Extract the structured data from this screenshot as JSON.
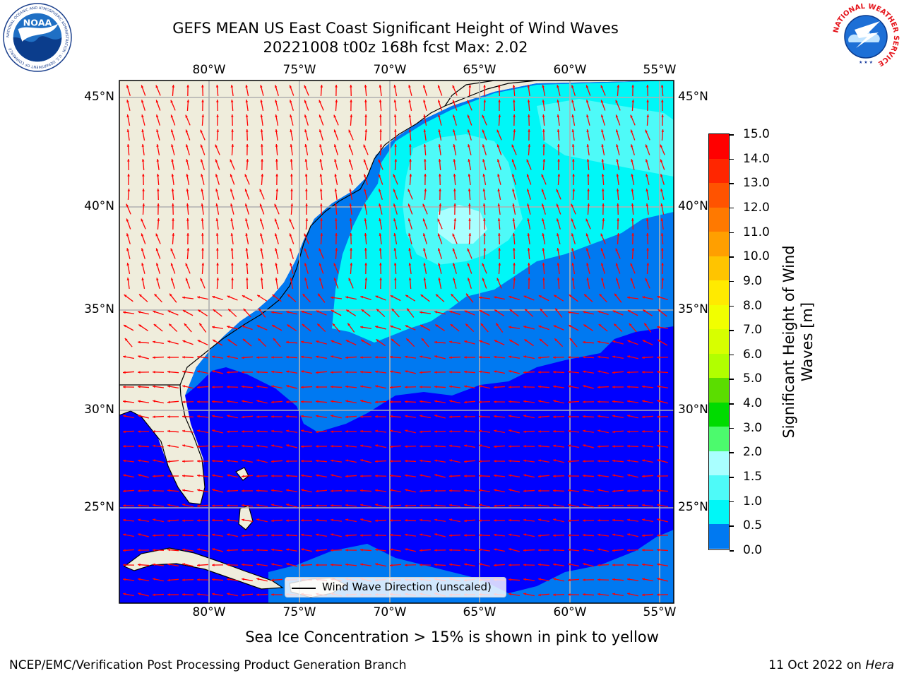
{
  "title": {
    "line1": "GEFS MEAN US East Coast Significant Height of Wind Waves",
    "line2": "20221008 t00z 168h fcst   Max: 2.02"
  },
  "chart_data": {
    "type": "heatmap",
    "variable": "Significant Height of Wind Waves",
    "max_value": 2.02,
    "extent": {
      "lon_min": -85,
      "lon_max": -54.5,
      "lat_min": 20.5,
      "lat_max": 46
    },
    "lon_ticks": [
      "80°W",
      "75°W",
      "70°W",
      "65°W",
      "60°W",
      "55°W"
    ],
    "lat_ticks": [
      "45°N",
      "40°N",
      "35°N",
      "30°N",
      "25°N"
    ],
    "grid": true,
    "regions": [
      {
        "band": "0.0-0.5",
        "area": "south of about 32°N and the Caribbean"
      },
      {
        "band": "0.5-1.0",
        "area": "coastal shelf and a band across about 33°N-38°N"
      },
      {
        "band": "1.0-1.5",
        "area": "northeast of about 35°N, Gulf of Maine to 55°W"
      },
      {
        "band": "1.5-2.0",
        "area": "patches near 37°N-42°N, 64°W-70°W"
      },
      {
        "band": "2.0-3.0",
        "area": "small patch near 38°N, 67°W (max 2.02)"
      }
    ],
    "arrows": {
      "color": "#ff0000",
      "description": "Wind wave direction (unscaled); mostly westward south of 34°N, north-northwestward north of 35°N"
    }
  },
  "colorbar": {
    "title": "Significant Height of Wind Waves [m]",
    "labels": [
      "15.0",
      "14.0",
      "13.0",
      "12.0",
      "11.0",
      "10.0",
      "9.0",
      "8.0",
      "7.0",
      "6.0",
      "5.0",
      "4.0",
      "3.0",
      "2.0",
      "1.5",
      "1.0",
      "0.5",
      "0.0"
    ],
    "colors": [
      "#ff0000",
      "#ff2600",
      "#ff5300",
      "#ff7900",
      "#ff9f00",
      "#ffc400",
      "#ffea00",
      "#f1ff00",
      "#d7ff00",
      "#b1ff00",
      "#5bdd00",
      "#00db00",
      "#4cfa6d",
      "#a9ffff",
      "#4efaf8",
      "#00f7f7",
      "#0079f1",
      "#0000ff"
    ]
  },
  "legend": {
    "label": "Wind Wave Direction (unscaled)"
  },
  "subcaption": "Sea Ice Concentration > 15% is shown in pink to yellow",
  "footer": {
    "left": "NCEP/EMC/Verification Post Processing Product Generation Branch",
    "right_date": "11 Oct 2022 on ",
    "right_host": "Hera"
  },
  "logos": {
    "noaa_text": "NOAA",
    "noaa_ring": "NATIONAL OCEANIC AND ATMOSPHERIC ADMINISTRATION · U.S. DEPARTMENT OF COMMERCE",
    "nws_ring": "NATIONAL WEATHER SERVICE"
  },
  "colors": {
    "land": "#efeddc",
    "band_0": "#0000ff",
    "band_05": "#0079f1",
    "band_10": "#00f7f7",
    "band_15": "#4efaf8",
    "band_20": "#a9ffff",
    "gridline": "#b0b0b0",
    "arrow": "#ff0000"
  }
}
